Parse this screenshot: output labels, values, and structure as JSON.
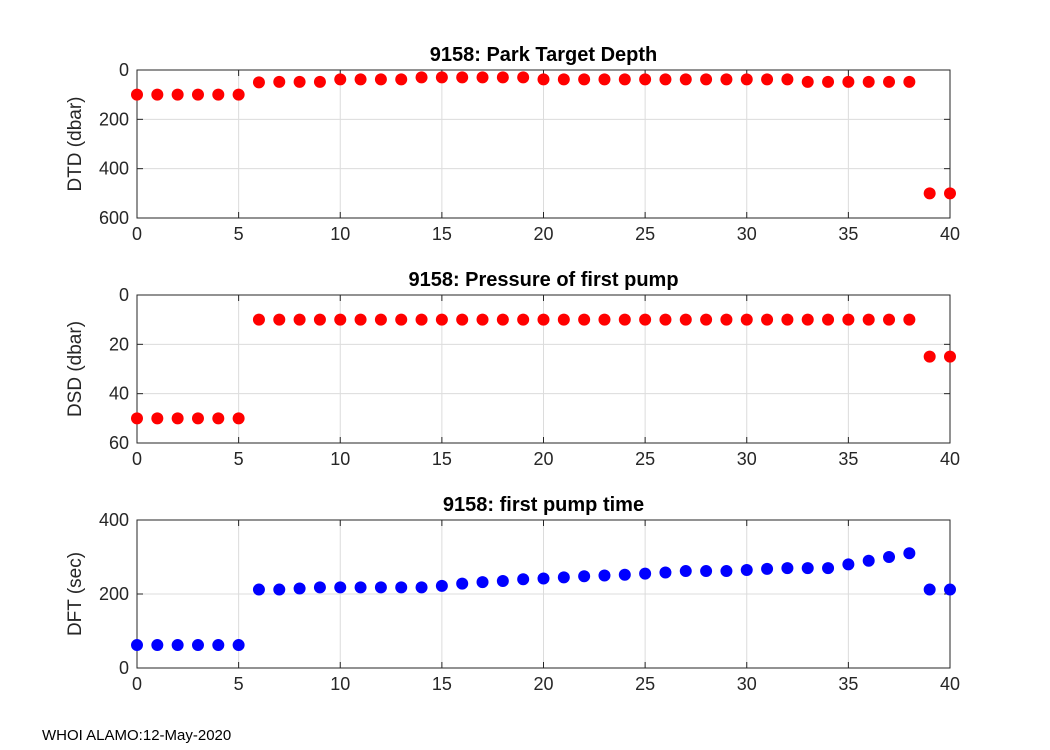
{
  "footer": "WHOI ALAMO:12-May-2020",
  "colors": {
    "red": "#ff0000",
    "blue": "#0000ff"
  },
  "chart_data": [
    {
      "type": "scatter",
      "title": "9158: Park Target Depth",
      "ylabel": "DTD (dbar)",
      "xlim": [
        0,
        40
      ],
      "ylim": [
        0,
        600
      ],
      "y_reversed": true,
      "xticks": [
        0,
        5,
        10,
        15,
        20,
        25,
        30,
        35,
        40
      ],
      "yticks": [
        0,
        200,
        400,
        600
      ],
      "grid": true,
      "color": "#ff0000",
      "x": [
        0,
        1,
        2,
        3,
        4,
        5,
        6,
        7,
        8,
        9,
        10,
        11,
        12,
        13,
        14,
        15,
        16,
        17,
        18,
        19,
        20,
        21,
        22,
        23,
        24,
        25,
        26,
        27,
        28,
        29,
        30,
        31,
        32,
        33,
        34,
        35,
        36,
        37,
        38,
        39,
        40
      ],
      "y": [
        100,
        100,
        100,
        100,
        100,
        100,
        50,
        48,
        48,
        48,
        38,
        38,
        38,
        38,
        30,
        30,
        30,
        30,
        30,
        30,
        38,
        38,
        38,
        38,
        38,
        38,
        38,
        38,
        38,
        38,
        38,
        38,
        38,
        48,
        48,
        48,
        48,
        48,
        48,
        500,
        500
      ]
    },
    {
      "type": "scatter",
      "title": "9158: Pressure of first pump",
      "ylabel": "DSD (dbar)",
      "xlim": [
        0,
        40
      ],
      "ylim": [
        0,
        60
      ],
      "y_reversed": true,
      "xticks": [
        0,
        5,
        10,
        15,
        20,
        25,
        30,
        35,
        40
      ],
      "yticks": [
        0,
        20,
        40,
        60
      ],
      "grid": true,
      "color": "#ff0000",
      "x": [
        0,
        1,
        2,
        3,
        4,
        5,
        6,
        7,
        8,
        9,
        10,
        11,
        12,
        13,
        14,
        15,
        16,
        17,
        18,
        19,
        20,
        21,
        22,
        23,
        24,
        25,
        26,
        27,
        28,
        29,
        30,
        31,
        32,
        33,
        34,
        35,
        36,
        37,
        38,
        39,
        40
      ],
      "y": [
        50,
        50,
        50,
        50,
        50,
        50,
        10,
        10,
        10,
        10,
        10,
        10,
        10,
        10,
        10,
        10,
        10,
        10,
        10,
        10,
        10,
        10,
        10,
        10,
        10,
        10,
        10,
        10,
        10,
        10,
        10,
        10,
        10,
        10,
        10,
        10,
        10,
        10,
        10,
        25,
        25
      ]
    },
    {
      "type": "scatter",
      "title": "9158: first pump time",
      "ylabel": "DFT (sec)",
      "xlim": [
        0,
        40
      ],
      "ylim": [
        0,
        400
      ],
      "y_reversed": false,
      "xticks": [
        0,
        5,
        10,
        15,
        20,
        25,
        30,
        35,
        40
      ],
      "yticks": [
        0,
        200,
        400
      ],
      "grid": true,
      "color": "#0000ff",
      "x": [
        0,
        1,
        2,
        3,
        4,
        5,
        6,
        7,
        8,
        9,
        10,
        11,
        12,
        13,
        14,
        15,
        16,
        17,
        18,
        19,
        20,
        21,
        22,
        23,
        24,
        25,
        26,
        27,
        28,
        29,
        30,
        31,
        32,
        33,
        34,
        35,
        36,
        37,
        38,
        39,
        40
      ],
      "y": [
        62,
        62,
        62,
        62,
        62,
        62,
        212,
        212,
        215,
        218,
        218,
        218,
        218,
        218,
        218,
        222,
        228,
        232,
        235,
        240,
        242,
        245,
        248,
        250,
        252,
        255,
        258,
        262,
        262,
        262,
        265,
        268,
        270,
        270,
        270,
        280,
        290,
        300,
        310,
        212,
        212
      ]
    }
  ]
}
